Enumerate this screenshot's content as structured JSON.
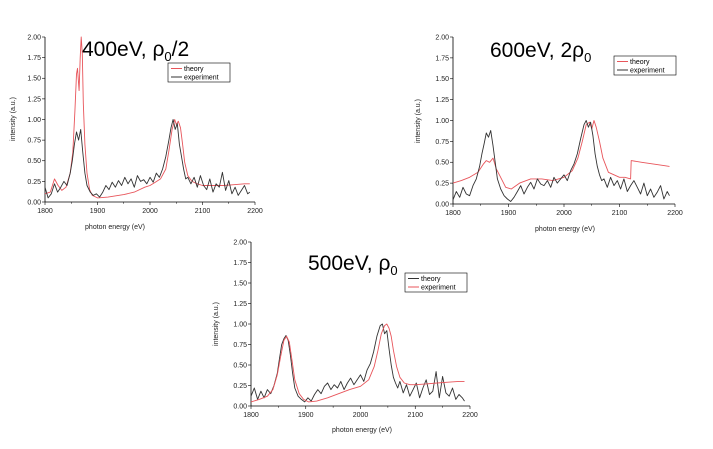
{
  "colors": {
    "theory_red": "#e8555b",
    "experiment_black": "#333333",
    "axis": "#000000"
  },
  "chart_data": [
    {
      "type": "line",
      "title_main": "400eV, ρ",
      "title_sub": "0",
      "title_tail": "/2",
      "xlabel": "photon energy (eV)",
      "ylabel": "intensity (a.u.)",
      "xlim": [
        1800,
        2200
      ],
      "ylim": [
        0,
        2.0
      ],
      "xticks": [
        "1800",
        "1900",
        "2000",
        "2100",
        "2200"
      ],
      "yticks": [
        "0.00",
        "0.25",
        "0.50",
        "0.75",
        "1.00",
        "1.25",
        "1.50",
        "1.75",
        "2.00"
      ],
      "legend": [
        {
          "name": "theory",
          "color": "#e8555b"
        },
        {
          "name": "experiment",
          "color": "#333333"
        }
      ],
      "series": [
        {
          "name": "theory",
          "color": "#e8555b",
          "x": [
            1800,
            1810,
            1818,
            1825,
            1832,
            1840,
            1848,
            1853,
            1857,
            1860,
            1862,
            1865,
            1867,
            1869,
            1871,
            1873,
            1876,
            1880,
            1885,
            1890,
            1900,
            1920,
            1950,
            1970,
            1990,
            2000,
            2010,
            2020,
            2030,
            2036,
            2042,
            2047,
            2050,
            2054,
            2058,
            2062,
            2066,
            2072,
            2080,
            2090,
            2100,
            2120,
            2140,
            2160,
            2180,
            2190
          ],
          "y": [
            0.1,
            0.12,
            0.28,
            0.2,
            0.14,
            0.18,
            0.35,
            0.6,
            1.1,
            1.55,
            1.62,
            1.35,
            1.75,
            2.0,
            1.8,
            1.2,
            0.7,
            0.35,
            0.15,
            0.08,
            0.05,
            0.06,
            0.09,
            0.12,
            0.18,
            0.2,
            0.24,
            0.28,
            0.4,
            0.62,
            0.88,
            1.0,
            0.94,
            0.98,
            0.9,
            0.7,
            0.48,
            0.32,
            0.25,
            0.22,
            0.2,
            0.2,
            0.2,
            0.21,
            0.22,
            0.22
          ]
        },
        {
          "name": "experiment",
          "color": "#333333",
          "x": [
            1800,
            1806,
            1812,
            1818,
            1824,
            1830,
            1836,
            1842,
            1848,
            1852,
            1856,
            1860,
            1864,
            1868,
            1872,
            1876,
            1880,
            1886,
            1892,
            1898,
            1904,
            1910,
            1916,
            1922,
            1928,
            1934,
            1940,
            1946,
            1952,
            1958,
            1964,
            1970,
            1976,
            1982,
            1988,
            1994,
            2000,
            2006,
            2012,
            2018,
            2024,
            2030,
            2036,
            2040,
            2044,
            2048,
            2052,
            2056,
            2060,
            2064,
            2068,
            2072,
            2078,
            2084,
            2090,
            2096,
            2102,
            2108,
            2114,
            2120,
            2126,
            2132,
            2138,
            2144,
            2150,
            2156,
            2162,
            2168,
            2174,
            2180,
            2186,
            2190
          ],
          "y": [
            0.18,
            0.05,
            0.1,
            0.22,
            0.12,
            0.18,
            0.25,
            0.2,
            0.35,
            0.5,
            0.7,
            0.85,
            0.75,
            0.88,
            0.6,
            0.35,
            0.2,
            0.12,
            0.08,
            0.1,
            0.06,
            0.12,
            0.2,
            0.15,
            0.24,
            0.18,
            0.26,
            0.2,
            0.3,
            0.22,
            0.28,
            0.18,
            0.32,
            0.25,
            0.27,
            0.22,
            0.3,
            0.24,
            0.35,
            0.3,
            0.4,
            0.55,
            0.75,
            0.9,
            1.0,
            0.88,
            0.95,
            0.7,
            0.55,
            0.4,
            0.28,
            0.3,
            0.22,
            0.3,
            0.18,
            0.32,
            0.2,
            0.15,
            0.28,
            0.12,
            0.22,
            0.18,
            0.36,
            0.14,
            0.26,
            0.1,
            0.18,
            0.08,
            0.14,
            0.2,
            0.1,
            0.12
          ]
        }
      ]
    },
    {
      "type": "line",
      "title_main": "600eV, 2ρ",
      "title_sub": "0",
      "title_tail": "",
      "xlabel": "photon energy (eV)",
      "ylabel": "intensity (a.u.)",
      "xlim": [
        1800,
        2200
      ],
      "ylim": [
        0,
        2.0
      ],
      "xticks": [
        "1800",
        "1900",
        "2000",
        "2100",
        "2200"
      ],
      "yticks": [
        "0.00",
        "0.25",
        "0.50",
        "0.75",
        "1.00",
        "1.25",
        "1.50",
        "1.75",
        "2.00"
      ],
      "legend": [
        {
          "name": "theory",
          "color": "#e8555b"
        },
        {
          "name": "experiment",
          "color": "#333333"
        }
      ],
      "series": [
        {
          "name": "theory",
          "color": "#e8555b",
          "x": [
            1800,
            1815,
            1830,
            1845,
            1855,
            1860,
            1866,
            1872,
            1878,
            1885,
            1895,
            1905,
            1920,
            1940,
            1960,
            1980,
            2000,
            2015,
            2025,
            2033,
            2040,
            2046,
            2050,
            2054,
            2058,
            2064,
            2070,
            2080,
            2090,
            2100,
            2110,
            2120,
            2121,
            2140,
            2160,
            2180,
            2190
          ],
          "y": [
            0.25,
            0.28,
            0.32,
            0.38,
            0.48,
            0.52,
            0.5,
            0.55,
            0.42,
            0.33,
            0.2,
            0.18,
            0.25,
            0.3,
            0.3,
            0.28,
            0.32,
            0.4,
            0.55,
            0.75,
            0.95,
            0.98,
            0.9,
            1.0,
            0.92,
            0.75,
            0.55,
            0.38,
            0.35,
            0.32,
            0.32,
            0.3,
            0.52,
            0.5,
            0.48,
            0.46,
            0.45
          ]
        },
        {
          "name": "experiment",
          "color": "#333333",
          "x": [
            1800,
            1806,
            1812,
            1818,
            1824,
            1830,
            1836,
            1842,
            1848,
            1852,
            1856,
            1860,
            1864,
            1868,
            1872,
            1876,
            1880,
            1886,
            1892,
            1898,
            1904,
            1910,
            1916,
            1922,
            1928,
            1934,
            1940,
            1946,
            1952,
            1958,
            1964,
            1970,
            1976,
            1982,
            1988,
            1994,
            2000,
            2006,
            2012,
            2018,
            2024,
            2030,
            2036,
            2040,
            2044,
            2048,
            2052,
            2056,
            2060,
            2064,
            2068,
            2072,
            2078,
            2084,
            2090,
            2096,
            2102,
            2108,
            2114,
            2120,
            2126,
            2132,
            2138,
            2144,
            2150,
            2156,
            2162,
            2168,
            2174,
            2180,
            2186,
            2190
          ],
          "y": [
            0.05,
            0.15,
            0.08,
            0.2,
            0.12,
            0.1,
            0.22,
            0.3,
            0.45,
            0.6,
            0.72,
            0.85,
            0.8,
            0.88,
            0.7,
            0.5,
            0.3,
            0.18,
            0.1,
            0.06,
            0.03,
            0.08,
            0.15,
            0.22,
            0.12,
            0.2,
            0.26,
            0.18,
            0.3,
            0.24,
            0.22,
            0.28,
            0.2,
            0.32,
            0.25,
            0.3,
            0.35,
            0.28,
            0.4,
            0.48,
            0.6,
            0.78,
            0.95,
            1.0,
            0.92,
            0.98,
            0.82,
            0.6,
            0.45,
            0.35,
            0.28,
            0.3,
            0.2,
            0.32,
            0.22,
            0.28,
            0.18,
            0.3,
            0.15,
            0.22,
            0.28,
            0.2,
            0.12,
            0.25,
            0.1,
            0.18,
            0.08,
            0.14,
            0.22,
            0.06,
            0.15,
            0.1
          ]
        }
      ]
    },
    {
      "type": "line",
      "title_main": "500eV, ρ",
      "title_sub": "0",
      "title_tail": "",
      "xlabel": "photon energy (eV)",
      "ylabel": "intensity (a.u.)",
      "xlim": [
        1800,
        2200
      ],
      "ylim": [
        0,
        2.0
      ],
      "xticks": [
        "1800",
        "1900",
        "2000",
        "2100",
        "2200"
      ],
      "yticks": [
        "0.00",
        "0.25",
        "0.50",
        "0.75",
        "1.00",
        "1.25",
        "1.50",
        "1.75",
        "2.00"
      ],
      "legend": [
        {
          "name": "theory",
          "color": "#333333"
        },
        {
          "name": "experiment",
          "color": "#e8555b"
        }
      ],
      "series": [
        {
          "name": "theory",
          "color": "#333333",
          "x": [
            1800,
            1806,
            1812,
            1818,
            1824,
            1830,
            1836,
            1842,
            1848,
            1852,
            1856,
            1860,
            1864,
            1868,
            1872,
            1876,
            1880,
            1886,
            1892,
            1898,
            1904,
            1910,
            1916,
            1922,
            1928,
            1934,
            1940,
            1946,
            1952,
            1958,
            1964,
            1970,
            1976,
            1982,
            1988,
            1994,
            2000,
            2006,
            2012,
            2018,
            2024,
            2030,
            2036,
            2040,
            2044,
            2048,
            2052,
            2056,
            2060,
            2064,
            2068,
            2072,
            2078,
            2084,
            2090,
            2096,
            2102,
            2108,
            2114,
            2120,
            2126,
            2132,
            2138,
            2144,
            2150,
            2156,
            2162,
            2168,
            2174,
            2180,
            2186,
            2190
          ],
          "y": [
            0.12,
            0.22,
            0.08,
            0.18,
            0.1,
            0.2,
            0.15,
            0.25,
            0.4,
            0.58,
            0.75,
            0.82,
            0.86,
            0.8,
            0.62,
            0.4,
            0.22,
            0.12,
            0.08,
            0.05,
            0.1,
            0.06,
            0.14,
            0.2,
            0.15,
            0.24,
            0.28,
            0.2,
            0.26,
            0.22,
            0.3,
            0.2,
            0.28,
            0.34,
            0.26,
            0.32,
            0.38,
            0.3,
            0.44,
            0.52,
            0.66,
            0.85,
            0.98,
            1.0,
            0.88,
            0.92,
            0.7,
            0.5,
            0.35,
            0.28,
            0.22,
            0.3,
            0.16,
            0.26,
            0.12,
            0.2,
            0.28,
            0.1,
            0.22,
            0.32,
            0.14,
            0.18,
            0.42,
            0.1,
            0.36,
            0.16,
            0.12,
            0.22,
            0.08,
            0.14,
            0.1,
            0.06
          ]
        },
        {
          "name": "experiment",
          "color": "#e8555b",
          "x": [
            1800,
            1815,
            1830,
            1840,
            1848,
            1854,
            1860,
            1865,
            1870,
            1875,
            1880,
            1888,
            1896,
            1905,
            1920,
            1940,
            1960,
            1980,
            2000,
            2015,
            2025,
            2032,
            2038,
            2044,
            2048,
            2052,
            2056,
            2060,
            2066,
            2072,
            2080,
            2090,
            2100,
            2120,
            2140,
            2160,
            2180,
            2190
          ],
          "y": [
            0.05,
            0.08,
            0.12,
            0.2,
            0.38,
            0.6,
            0.8,
            0.85,
            0.78,
            0.55,
            0.32,
            0.15,
            0.08,
            0.05,
            0.06,
            0.1,
            0.15,
            0.2,
            0.24,
            0.32,
            0.48,
            0.68,
            0.88,
            0.98,
            1.0,
            0.95,
            0.85,
            0.68,
            0.48,
            0.35,
            0.28,
            0.26,
            0.26,
            0.27,
            0.28,
            0.29,
            0.3,
            0.3
          ]
        }
      ]
    }
  ]
}
